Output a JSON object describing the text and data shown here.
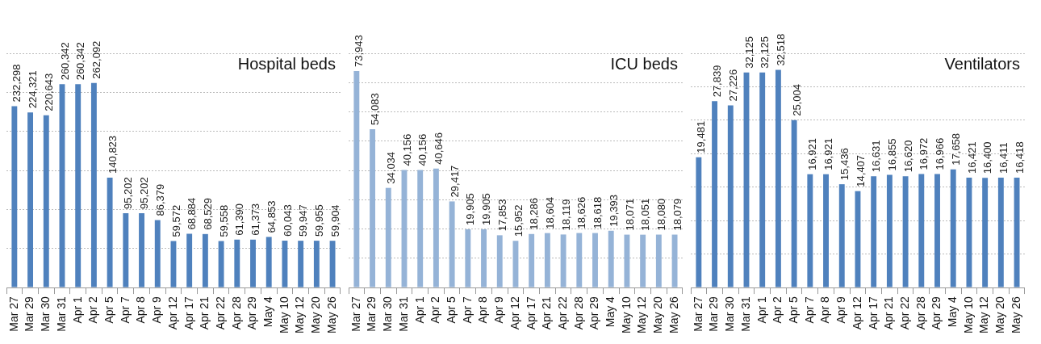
{
  "chart_data": [
    {
      "type": "bar",
      "title": "Hospital beds",
      "categories": [
        "Mar 27",
        "Mar 29",
        "Mar 30",
        "Mar 31",
        "Apr 1",
        "Apr 2",
        "Apr 5",
        "Apr 7",
        "Apr 8",
        "Apr 9",
        "Apr 12",
        "Apr 17",
        "Apr 21",
        "Apr 22",
        "Apr 28",
        "Apr 29",
        "May 4",
        "May 10",
        "May 12",
        "May 20",
        "May 26"
      ],
      "values": [
        232298,
        224321,
        220643,
        260342,
        260342,
        262092,
        140823,
        95202,
        95202,
        86379,
        59572,
        68884,
        68529,
        59558,
        61390,
        61373,
        64853,
        60043,
        59947,
        59955,
        59904
      ],
      "value_labels": [
        "232,298",
        "224,321",
        "220,643",
        "260,342",
        "260,342",
        "262,092",
        "140,823",
        "95,202",
        "95,202",
        "86,379",
        "59,572",
        "68,884",
        "68,529",
        "59,558",
        "61,390",
        "61,373",
        "64,853",
        "60,043",
        "59,947",
        "59,955",
        "59,904"
      ],
      "color": "#4f81bd",
      "tick_labels": "x",
      "grid": "y",
      "legend": false
    },
    {
      "type": "bar",
      "title": "ICU beds",
      "categories": [
        "Mar 27",
        "Mar 29",
        "Mar 30",
        "Mar 31",
        "Apr 1",
        "Apr 2",
        "Apr 5",
        "Apr 7",
        "Apr 8",
        "Apr 9",
        "Apr 12",
        "Apr 17",
        "Apr 21",
        "Apr 22",
        "Apr 28",
        "Apr 29",
        "May 4",
        "May 10",
        "May 12",
        "May 20",
        "May 26"
      ],
      "values": [
        73943,
        54083,
        34034,
        40156,
        40156,
        40646,
        29417,
        19905,
        19905,
        17853,
        15952,
        18286,
        18604,
        18119,
        18626,
        18618,
        19393,
        18071,
        18051,
        18080,
        18079
      ],
      "value_labels": [
        "73,943",
        "54,083",
        "34,034",
        "40,156",
        "40,156",
        "40,646",
        "29,417",
        "19,905",
        "19,905",
        "17,853",
        "15,952",
        "18,286",
        "18,604",
        "18,119",
        "18,626",
        "18,618",
        "19,393",
        "18,071",
        "18,051",
        "18,080",
        "18,079"
      ],
      "color": "#95b3d7",
      "tick_labels": "x",
      "grid": "y",
      "legend": false
    },
    {
      "type": "bar",
      "title": "Ventilators",
      "categories": [
        "Mar 27",
        "Mar 29",
        "Mar 30",
        "Mar 31",
        "Apr 1",
        "Apr 2",
        "Apr 5",
        "Apr 7",
        "Apr 8",
        "Apr 9",
        "Apr 12",
        "Apr 17",
        "Apr 21",
        "Apr 22",
        "Apr 28",
        "Apr 29",
        "May 4",
        "May 10",
        "May 12",
        "May 20",
        "May 26"
      ],
      "values": [
        19481,
        27839,
        27226,
        32125,
        32125,
        32518,
        25004,
        16921,
        16921,
        15436,
        14407,
        16631,
        16855,
        16620,
        16972,
        16966,
        17658,
        16421,
        16400,
        16411,
        16418
      ],
      "value_labels": [
        "19,481",
        "27,839",
        "27,226",
        "32,125",
        "32,125",
        "32,518",
        "25,004",
        "16,921",
        "16,921",
        "15,436",
        "14,407",
        "16,631",
        "16,855",
        "16,620",
        "16,972",
        "16,966",
        "17,658",
        "16,421",
        "16,400",
        "16,411",
        "16,418"
      ],
      "color": "#4f81bd",
      "tick_labels": "x",
      "grid": "y",
      "legend": false
    }
  ]
}
